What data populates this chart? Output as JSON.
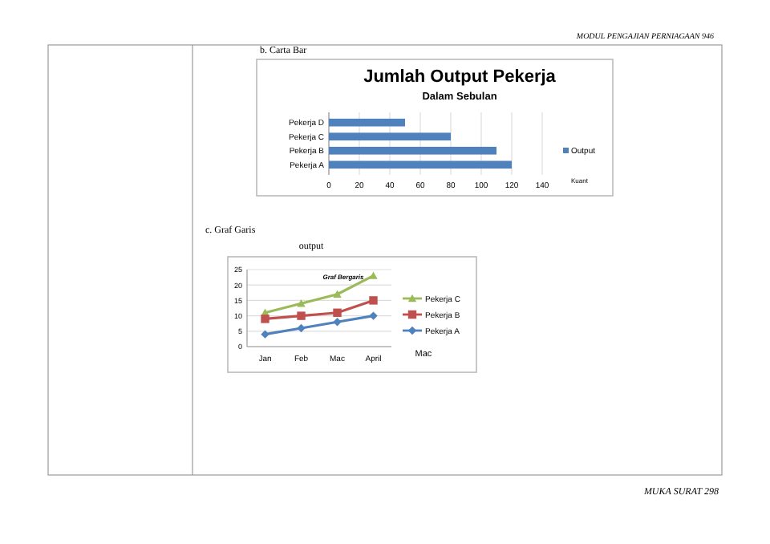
{
  "chart_data": [
    {
      "type": "bar",
      "orientation": "horizontal",
      "title": "Jumlah Output Pekerja",
      "subtitle": "Dalam Sebulan",
      "xlabel": "Kuant",
      "annotations": [
        "MODUL PENGAJIAN PERNIAGAAN 946",
        "b.  Carta Bar"
      ],
      "categories": [
        "Pekerja D",
        "Pekerja C",
        "Pekerja B",
        "Pekerja A"
      ],
      "series": [
        {
          "name": "Output",
          "color": "#4f81bd",
          "values": [
            50,
            80,
            110,
            120
          ]
        }
      ],
      "xlim": [
        0,
        140
      ],
      "xticks": [
        0,
        20,
        40,
        60,
        80,
        100,
        120,
        140
      ],
      "grid": "x",
      "legend": "right"
    },
    {
      "type": "line",
      "title": "output",
      "subtitle": "Graf Bergaris",
      "xlabel": "Mac",
      "annotations": [
        "c.  Graf Garis",
        "MUKA SURAT 298"
      ],
      "categories": [
        "Jan",
        "Feb",
        "Mac",
        "April"
      ],
      "series": [
        {
          "name": "Pekerja C",
          "color": "#9bbb59",
          "marker": "triangle",
          "values": [
            11,
            14,
            17,
            23
          ]
        },
        {
          "name": "Pekerja B",
          "color": "#c0504d",
          "marker": "square",
          "values": [
            9,
            10,
            11,
            15
          ]
        },
        {
          "name": "Pekerja A",
          "color": "#4f81bd",
          "marker": "diamond",
          "values": [
            4,
            6,
            8,
            10
          ]
        }
      ],
      "ylim": [
        0,
        25
      ],
      "yticks": [
        0,
        5,
        10,
        15,
        20,
        25
      ],
      "grid": "y",
      "legend": "right"
    }
  ]
}
